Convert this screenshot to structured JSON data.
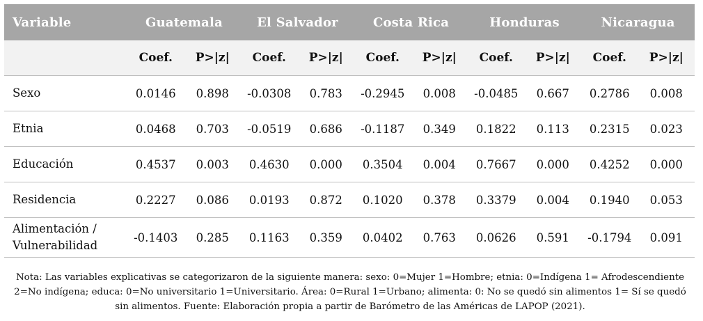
{
  "header": {
    "variable_label": "Variable",
    "countries": [
      "Guatemala",
      "El Salvador",
      "Costa Rica",
      "Honduras",
      "Nicaragua"
    ],
    "coef_label": "Coef.",
    "p_label": "P>|z|"
  },
  "rows": [
    {
      "label": "Sexo",
      "values": [
        "0.0146",
        "0.898",
        "-0.0308",
        "0.783",
        "-0.2945",
        "0.008",
        "-0.0485",
        "0.667",
        "0.2786",
        "0.008"
      ]
    },
    {
      "label": "Etnia",
      "values": [
        "0.0468",
        "0.703",
        "-0.0519",
        "0.686",
        "-0.1187",
        "0.349",
        "0.1822",
        "0.113",
        "0.2315",
        "0.023"
      ]
    },
    {
      "label": "Educación",
      "values": [
        "0.4537",
        "0.003",
        "0.4630",
        "0.000",
        "0.3504",
        "0.004",
        "0.7667",
        "0.000",
        "0.4252",
        "0.000"
      ]
    },
    {
      "label": "Residencia",
      "values": [
        "0.2227",
        "0.086",
        "0.0193",
        "0.872",
        "0.1020",
        "0.378",
        "0.3379",
        "0.004",
        "0.1940",
        "0.053"
      ]
    },
    {
      "label_line1": "Alimentación /",
      "label_line2": "Vulnerabilidad",
      "values": [
        "-0.1403",
        "0.285",
        "0.1163",
        "0.359",
        "0.0402",
        "0.763",
        "0.0626",
        "0.591",
        "-0.1794",
        "0.091"
      ]
    }
  ],
  "note": "Nota: Las variables explicativas se categorizaron de la siguiente manera: sexo: 0=Mujer 1=Hombre; etnia: 0=Indígena 1= Afrodescendiente 2=No indígena; educa: 0=No universitario 1=Universitario. Área: 0=Rural 1=Urbano; alimenta: 0: No se quedó sin alimentos 1= Sí se quedó sin alimentos. Fuente: Elaboración propia a partir de Barómetro de las Américas de LAPOP (2021).",
  "colors": {
    "header_bg": "#a6a6a6",
    "subheader_bg": "#f2f2f2",
    "rule": "#bfbfbf"
  }
}
